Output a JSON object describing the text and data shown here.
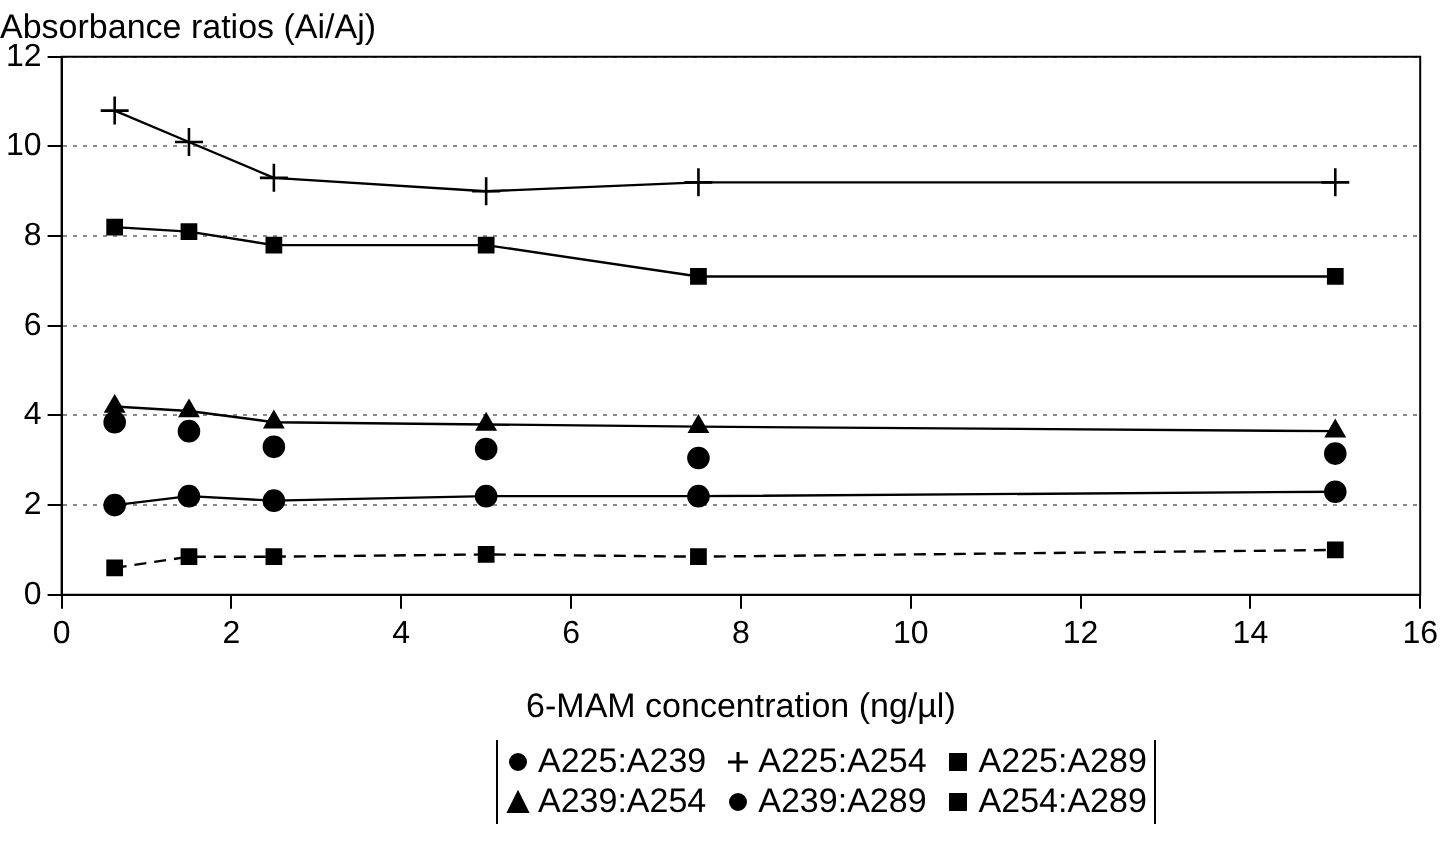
{
  "chart_data": {
    "type": "line",
    "ylabel": "Absorbance ratios (Ai/Aj)",
    "xlabel": "6-MAM concentration (ng/µl)",
    "x": [
      0.625,
      1.5,
      2.5,
      5,
      7.5,
      15
    ],
    "series": [
      {
        "name": "A225:A239",
        "color": "#000000",
        "marker": "circle",
        "values": [
          2.0,
          2.2,
          2.1,
          2.2,
          2.2,
          2.3
        ]
      },
      {
        "name": "A225:A254",
        "color": "#000000",
        "marker": "cross",
        "values": [
          10.8,
          10.1,
          9.3,
          9.0,
          9.2,
          9.2
        ]
      },
      {
        "name": "A225:A289",
        "color": "#000000",
        "marker": "square",
        "values": [
          8.2,
          8.1,
          7.8,
          7.8,
          7.1,
          7.1
        ]
      },
      {
        "name": "A239:A254",
        "color": "#000000",
        "marker": "triangle",
        "values": [
          4.2,
          4.1,
          3.85,
          3.8,
          3.75,
          3.65
        ]
      },
      {
        "name": "A239:A289",
        "type": "scatter",
        "color": "#000000",
        "marker": "circle",
        "values": [
          3.85,
          3.65,
          3.3,
          3.25,
          3.05,
          3.15
        ]
      },
      {
        "name": "A254:A289",
        "color": "#000000",
        "marker": "square",
        "line_style": "dashed",
        "values": [
          0.6,
          0.85,
          0.85,
          0.9,
          0.85,
          1.0
        ]
      }
    ],
    "xlim": [
      0,
      16
    ],
    "xticks": [
      0,
      2,
      4,
      6,
      8,
      10,
      12,
      14,
      16
    ],
    "ylim": [
      0,
      12
    ],
    "yticks": [
      0,
      2,
      4,
      6,
      8,
      10,
      12
    ],
    "grid": "y",
    "legend": "bottom"
  }
}
